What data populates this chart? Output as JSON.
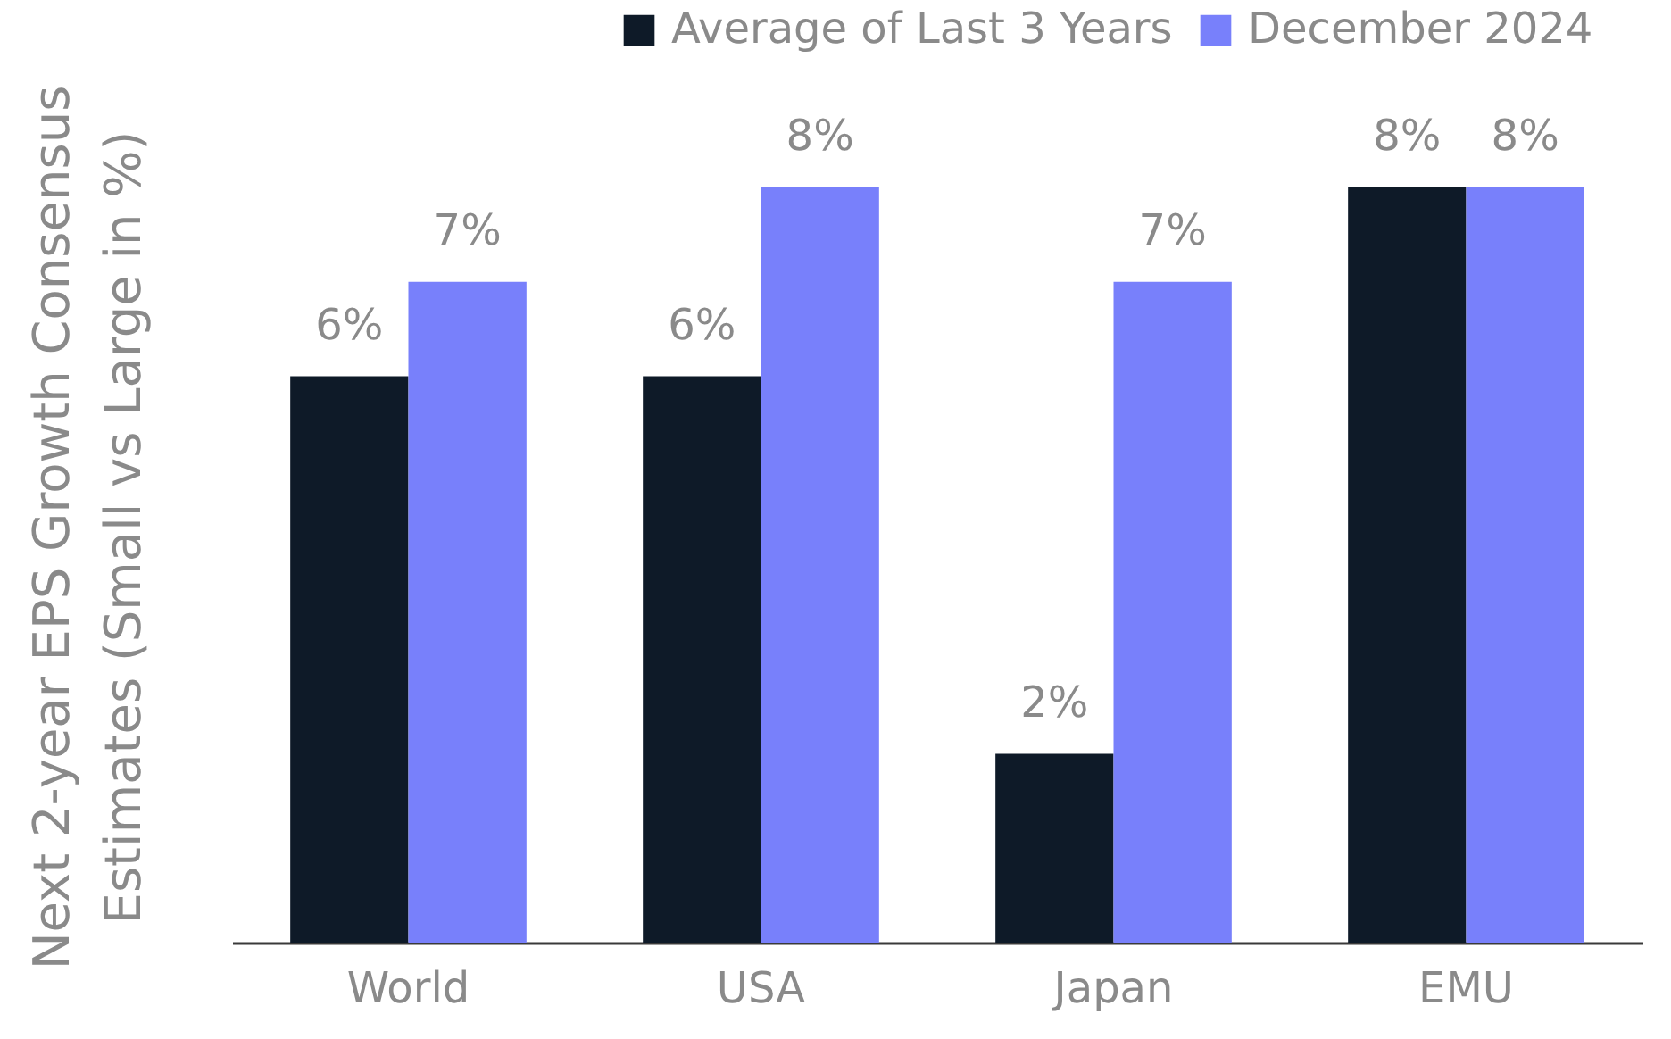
{
  "chart_data": {
    "type": "bar",
    "ylabel": "Next 2-year EPS Growth Consensus Estimates (Small vs Large in %)",
    "categories": [
      "World",
      "USA",
      "Japan",
      "EMU"
    ],
    "series": [
      {
        "name": "Average of Last 3 Years",
        "color": "#0e1a28",
        "values": [
          6,
          6,
          2,
          8
        ],
        "value_labels": [
          "6%",
          "6%",
          "2%",
          "8%"
        ]
      },
      {
        "name": "December 2024",
        "color": "#7880fb",
        "values": [
          7,
          8,
          7,
          8
        ],
        "value_labels": [
          "7%",
          "8%",
          "7%",
          "8%"
        ]
      }
    ],
    "legend": "top right",
    "tick_labels": "x"
  }
}
